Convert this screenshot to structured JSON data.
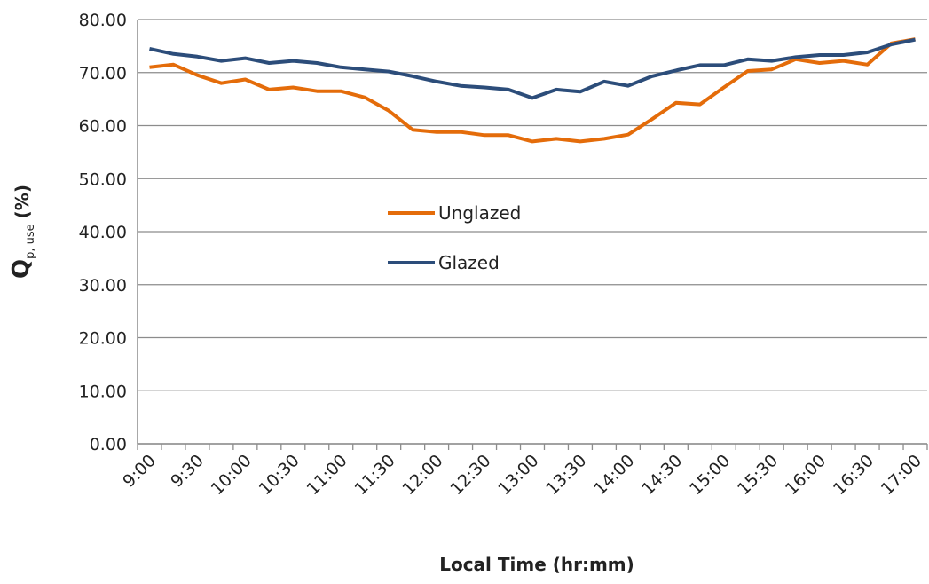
{
  "chart_data": {
    "type": "line",
    "x_label": "Local Time  (hr:mm)",
    "y_label": "Q",
    "y_label_subscript": "p, use",
    "y_label_unit": "(%)",
    "categories": [
      "9:00",
      null,
      "9:30",
      null,
      "10:00",
      null,
      "10:30",
      null,
      "11:00",
      null,
      "11:30",
      null,
      "12:00",
      null,
      "12:30",
      null,
      "13:00",
      null,
      "13:30",
      null,
      "14:00",
      null,
      "14:30",
      null,
      "15:00",
      null,
      "15:30",
      null,
      "16:00",
      null,
      "16:30",
      null,
      "17:00"
    ],
    "series": [
      {
        "name": "Unglazed",
        "color": "#e46c0a",
        "values": [
          71,
          71.5,
          69.5,
          68,
          68.7,
          66.8,
          67.2,
          66.5,
          66.5,
          65.3,
          62.8,
          59.2,
          58.8,
          58.8,
          58.2,
          58.2,
          57,
          57.5,
          57,
          57.5,
          58.3,
          61.2,
          64.3,
          64,
          67.2,
          70.3,
          70.6,
          72.5,
          71.8,
          72.2,
          71.5,
          75.5,
          76.3
        ]
      },
      {
        "name": "Glazed",
        "color": "#2c4d7a",
        "values": [
          74.5,
          73.5,
          73,
          72.2,
          72.7,
          71.8,
          72.2,
          71.8,
          71,
          70.6,
          70.2,
          69.3,
          68.3,
          67.5,
          67.2,
          66.8,
          65.2,
          66.8,
          66.4,
          68.3,
          67.5,
          69.3,
          70.4,
          71.4,
          71.4,
          72.5,
          72.2,
          72.9,
          73.3,
          73.3,
          73.8,
          75.3,
          76.2
        ]
      }
    ],
    "ylim": [
      0,
      80
    ],
    "yticks": [
      {
        "value": 0,
        "label": "0.00"
      },
      {
        "value": 10,
        "label": "10.00"
      },
      {
        "value": 20,
        "label": "20.00"
      },
      {
        "value": 30,
        "label": "30.00"
      },
      {
        "value": 40,
        "label": "40.00"
      },
      {
        "value": 50,
        "label": "50.00"
      },
      {
        "value": 60,
        "label": "60.00"
      },
      {
        "value": 70,
        "label": "70.00"
      },
      {
        "value": 80,
        "label": "80.00"
      }
    ],
    "grid": true,
    "legend": "center"
  }
}
